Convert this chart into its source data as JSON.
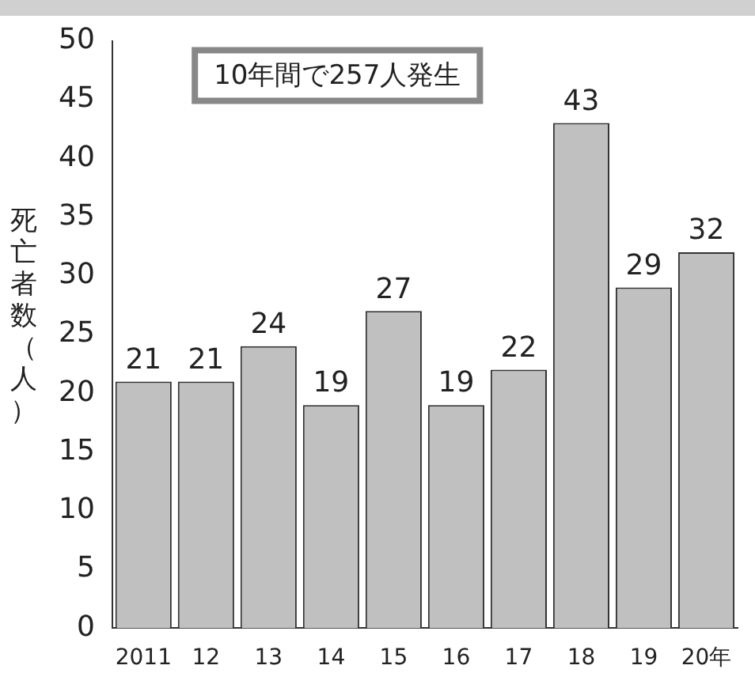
{
  "chart_data": {
    "type": "bar",
    "ylabel": "死亡者数（人）",
    "categories": [
      "2011",
      "12",
      "13",
      "14",
      "15",
      "16",
      "17",
      "18",
      "19",
      "20年"
    ],
    "values": [
      21,
      21,
      24,
      19,
      27,
      19,
      22,
      43,
      29,
      32
    ],
    "color": "#c0c0c0",
    "ylim": [
      0,
      50
    ],
    "yticks": [
      0,
      5,
      10,
      15,
      20,
      25,
      30,
      35,
      40,
      45,
      50
    ],
    "data_labels": true,
    "grid": false,
    "legend": false,
    "annotations": [
      "10年間で257人発生"
    ]
  }
}
